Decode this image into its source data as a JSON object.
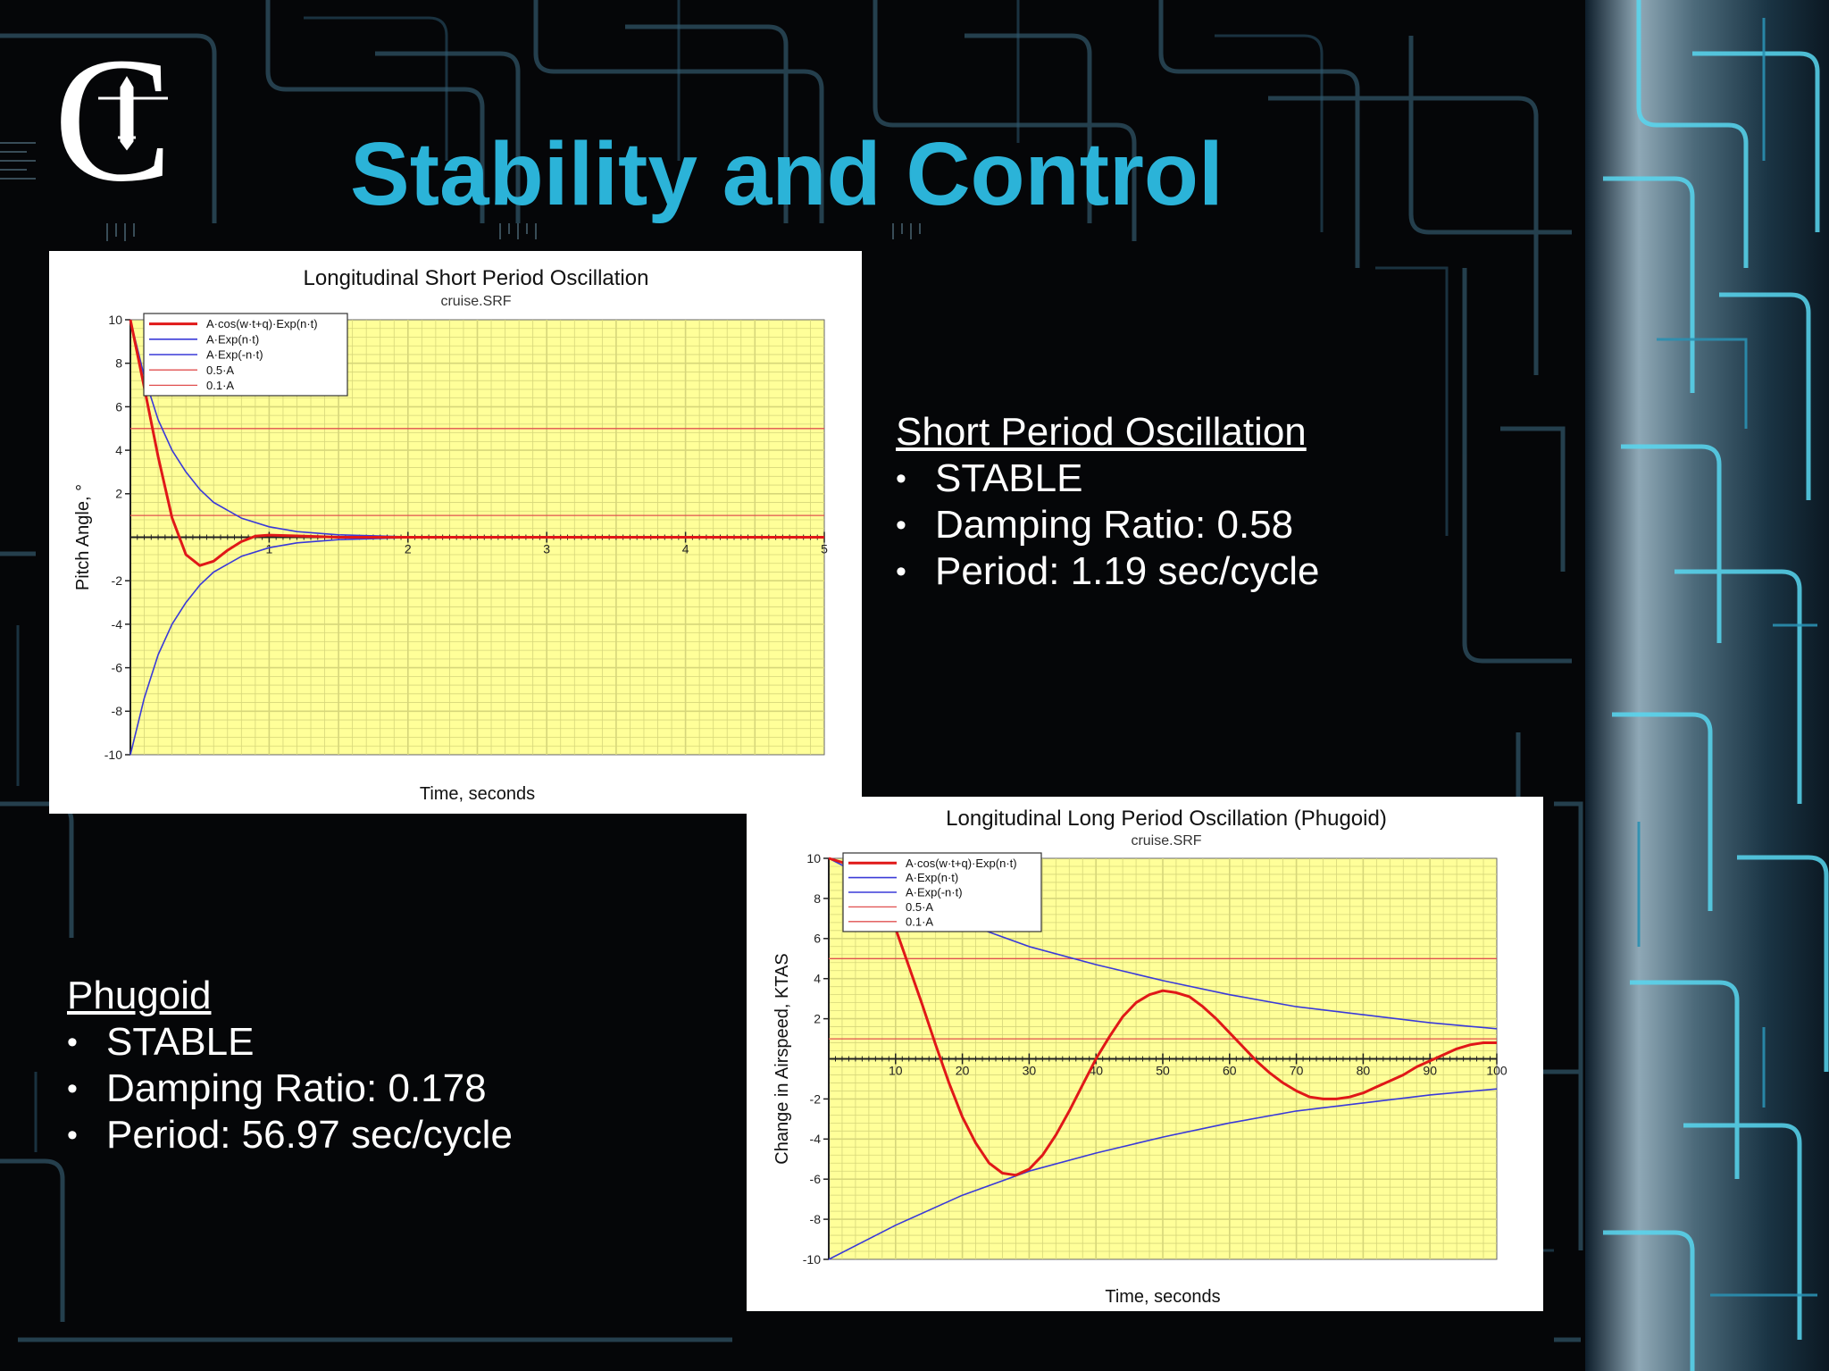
{
  "slide": {
    "title": "Stability and Control"
  },
  "colors": {
    "title": "#2bb3d8",
    "background": "#050608",
    "plot_bg": "#ffff99",
    "grid": "#d6d67a",
    "response": "#e01818",
    "envelope": "#3a3ad8",
    "threshold": "#e05050"
  },
  "logo": {
    "letter": "C",
    "icon": "aircraft-emblem-icon"
  },
  "short_period": {
    "heading": "Short Period Oscillation",
    "bullets": [
      "STABLE",
      "Damping Ratio: 0.58",
      "Period: 1.19 sec/cycle"
    ]
  },
  "phugoid": {
    "heading": "Phugoid",
    "bullets": [
      "STABLE",
      "Damping Ratio: 0.178",
      "Period: 56.97 sec/cycle"
    ]
  },
  "chart_data": [
    {
      "type": "line",
      "title": "Longitudinal Short Period Oscillation",
      "subtitle": "cruise.SRF",
      "xlabel": "Time, seconds",
      "ylabel": "Pitch Angle, °",
      "xlim": [
        0,
        5
      ],
      "ylim": [
        -10,
        10
      ],
      "xticks": [
        "1",
        "2",
        "3",
        "4",
        "5"
      ],
      "yticks": [
        "10",
        "8",
        "6",
        "4",
        "2",
        "-2",
        "-4",
        "-6",
        "-8",
        "-10"
      ],
      "grid": true,
      "legend_position": "top-left",
      "legend": [
        "A·cos(w·t+q)·Exp(n·t)",
        "A·Exp(n·t)",
        "A·Exp(-n·t)",
        "0.5·A",
        "0.1·A"
      ],
      "series": [
        {
          "name": "A·cos(w·t+q)·Exp(n·t)",
          "x": [
            0,
            0.1,
            0.2,
            0.3,
            0.4,
            0.5,
            0.6,
            0.7,
            0.8,
            0.9,
            1.0,
            1.2,
            1.5,
            2.0,
            3.0,
            4.0,
            5.0
          ],
          "y": [
            10,
            6.9,
            3.7,
            0.9,
            -0.8,
            -1.3,
            -1.1,
            -0.6,
            -0.2,
            0.05,
            0.1,
            0.06,
            0,
            0,
            0,
            0,
            0
          ]
        },
        {
          "name": "A·Exp(n·t)",
          "x": [
            0,
            0.1,
            0.2,
            0.3,
            0.4,
            0.5,
            0.6,
            0.8,
            1.0,
            1.2,
            1.5,
            2.0,
            3.0,
            4.0,
            5.0
          ],
          "y": [
            10,
            7.4,
            5.4,
            4.0,
            3.0,
            2.2,
            1.6,
            0.88,
            0.48,
            0.26,
            0.11,
            0.02,
            0,
            0,
            0
          ]
        },
        {
          "name": "A·Exp(-n·t)",
          "x": [
            0,
            0.1,
            0.2,
            0.3,
            0.4,
            0.5,
            0.6,
            0.8,
            1.0,
            1.2,
            1.5,
            2.0,
            3.0,
            4.0,
            5.0
          ],
          "y": [
            -10,
            -7.4,
            -5.4,
            -4.0,
            -3.0,
            -2.2,
            -1.6,
            -0.88,
            -0.48,
            -0.26,
            -0.11,
            -0.02,
            0,
            0,
            0
          ]
        },
        {
          "name": "0.5·A",
          "x": [
            0,
            5
          ],
          "y": [
            5,
            5
          ]
        },
        {
          "name": "0.1·A",
          "x": [
            0,
            5
          ],
          "y": [
            1,
            1
          ]
        }
      ]
    },
    {
      "type": "line",
      "title": "Longitudinal Long Period Oscillation (Phugoid)",
      "subtitle": "cruise.SRF",
      "xlabel": "Time, seconds",
      "ylabel": "Change in Airspeed, KTAS",
      "xlim": [
        0,
        100
      ],
      "ylim": [
        -10,
        10
      ],
      "xticks": [
        "10",
        "20",
        "30",
        "40",
        "50",
        "60",
        "70",
        "80",
        "90",
        "100"
      ],
      "yticks": [
        "10",
        "8",
        "6",
        "4",
        "2",
        "-2",
        "-4",
        "-6",
        "-8",
        "-10"
      ],
      "grid": true,
      "legend_position": "top-left",
      "legend": [
        "A·cos(w·t+q)·Exp(n·t)",
        "A·Exp(n·t)",
        "A·Exp(-n·t)",
        "0.5·A",
        "0.1·A"
      ],
      "series": [
        {
          "name": "A·cos(w·t+q)·Exp(n·t)",
          "x": [
            0,
            2,
            5,
            8,
            10,
            12,
            14,
            16,
            18,
            20,
            22,
            24,
            26,
            28,
            30,
            32,
            34,
            36,
            38,
            40,
            42,
            44,
            46,
            48,
            50,
            52,
            54,
            56,
            58,
            60,
            62,
            64,
            66,
            68,
            70,
            72,
            74,
            76,
            78,
            80,
            82,
            84,
            86,
            88,
            90,
            92,
            94,
            96,
            98,
            100
          ],
          "y": [
            10,
            9.8,
            9.3,
            8.0,
            6.5,
            4.6,
            2.7,
            0.7,
            -1.2,
            -2.9,
            -4.2,
            -5.2,
            -5.7,
            -5.8,
            -5.5,
            -4.8,
            -3.8,
            -2.6,
            -1.3,
            0.0,
            1.1,
            2.1,
            2.8,
            3.2,
            3.4,
            3.3,
            3.1,
            2.6,
            2.0,
            1.3,
            0.6,
            -0.1,
            -0.7,
            -1.2,
            -1.6,
            -1.9,
            -2.0,
            -2.0,
            -1.9,
            -1.7,
            -1.4,
            -1.1,
            -0.8,
            -0.4,
            -0.1,
            0.2,
            0.5,
            0.7,
            0.8,
            0.8
          ]
        },
        {
          "name": "A·Exp(n·t)",
          "x": [
            0,
            10,
            20,
            30,
            40,
            50,
            60,
            70,
            80,
            90,
            100
          ],
          "y": [
            10,
            8.3,
            6.8,
            5.6,
            4.7,
            3.9,
            3.2,
            2.6,
            2.2,
            1.8,
            1.5
          ]
        },
        {
          "name": "A·Exp(-n·t)",
          "x": [
            0,
            10,
            20,
            30,
            40,
            50,
            60,
            70,
            80,
            90,
            100
          ],
          "y": [
            -10,
            -8.3,
            -6.8,
            -5.6,
            -4.7,
            -3.9,
            -3.2,
            -2.6,
            -2.2,
            -1.8,
            -1.5
          ]
        },
        {
          "name": "0.5·A",
          "x": [
            0,
            100
          ],
          "y": [
            5,
            5
          ]
        },
        {
          "name": "0.1·A",
          "x": [
            0,
            100
          ],
          "y": [
            1,
            1
          ]
        }
      ]
    }
  ]
}
